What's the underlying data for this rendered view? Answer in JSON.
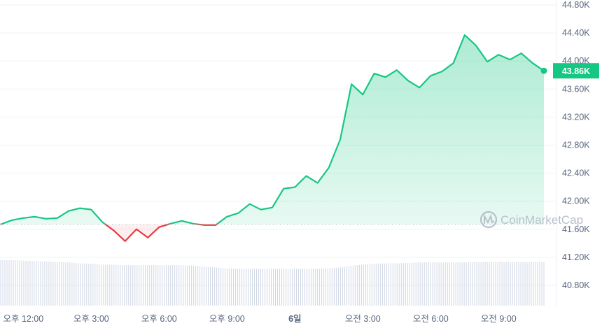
{
  "chart_data": {
    "type": "area",
    "title": "",
    "xlabel": "",
    "ylabel": "",
    "x_tick_labels": [
      "오후 12:00",
      "오후 3:00",
      "오후 6:00",
      "오후 9:00",
      "6일",
      "오전 3:00",
      "오전 6:00",
      "오전 9:00"
    ],
    "y_tick_labels": [
      "44.80K",
      "44.40K",
      "44.00K",
      "43.60K",
      "43.20K",
      "42.80K",
      "42.40K",
      "42.00K",
      "41.60K",
      "41.20K",
      "40.80K"
    ],
    "ylim": [
      40.6,
      44.8
    ],
    "y_unit": "K",
    "grid": "horizontal",
    "baseline": 41.67,
    "current_price_label": "43.86K",
    "watermark": "CoinMarketCap",
    "colors": {
      "up": "#16c784",
      "down": "#ea3943",
      "volume": "#cfd6e4",
      "grid": "#eff2f5",
      "axis_text": "#58667e"
    },
    "series": [
      {
        "x": [
          "오전 11:00",
          "오전 11:30",
          "오후 12:00",
          "오후 12:30",
          "오후 1:00",
          "오후 1:30",
          "오후 2:00",
          "오후 2:30",
          "오후 3:00",
          "오후 3:30",
          "오후 4:00",
          "오후 4:30",
          "오후 5:00",
          "오후 5:30",
          "오후 6:00",
          "오후 6:30",
          "오후 7:00",
          "오후 7:30",
          "오후 8:00",
          "오후 8:30",
          "오후 9:00",
          "오후 9:30",
          "오후 10:00",
          "오후 10:30",
          "오후 11:00",
          "오후 11:30",
          "6일 오전 12:00",
          "오전 12:30",
          "오전 1:00",
          "오전 1:30",
          "오전 2:00",
          "오전 2:30",
          "오전 3:00",
          "오전 3:30",
          "오전 4:00",
          "오전 4:30",
          "오전 5:00",
          "오전 5:30",
          "오전 6:00",
          "오전 6:30",
          "오전 7:00",
          "오전 7:30",
          "오전 8:00",
          "오전 8:30",
          "오전 9:00",
          "오전 9:30",
          "오전 10:00",
          "오전 10:30",
          "오전 11:00"
        ],
        "values": [
          41.67,
          41.73,
          41.76,
          41.78,
          41.75,
          41.76,
          41.86,
          41.9,
          41.88,
          41.7,
          41.58,
          41.43,
          41.6,
          41.48,
          41.63,
          41.68,
          41.72,
          41.68,
          41.66,
          41.66,
          41.78,
          41.83,
          41.96,
          41.88,
          41.91,
          42.18,
          42.2,
          42.36,
          42.26,
          42.48,
          42.88,
          43.67,
          43.52,
          43.82,
          43.77,
          43.87,
          43.72,
          43.62,
          43.79,
          43.85,
          43.97,
          44.37,
          44.22,
          43.99,
          44.09,
          44.02,
          44.11,
          43.97,
          43.86
        ]
      }
    ],
    "volume_relative": [
      1.0,
      1.0,
      0.99,
      0.98,
      0.97,
      0.96,
      0.95,
      0.93,
      0.92,
      0.9,
      0.9,
      0.89,
      0.89,
      0.89,
      0.89,
      0.89,
      0.89,
      0.88,
      0.86,
      0.84,
      0.82,
      0.81,
      0.81,
      0.81,
      0.81,
      0.81,
      0.81,
      0.81,
      0.81,
      0.82,
      0.84,
      0.88,
      0.9,
      0.92,
      0.93,
      0.93,
      0.94,
      0.95,
      0.95,
      0.95,
      0.95,
      0.95,
      0.96,
      0.96,
      0.96,
      0.96,
      0.96,
      0.96,
      0.96
    ]
  }
}
